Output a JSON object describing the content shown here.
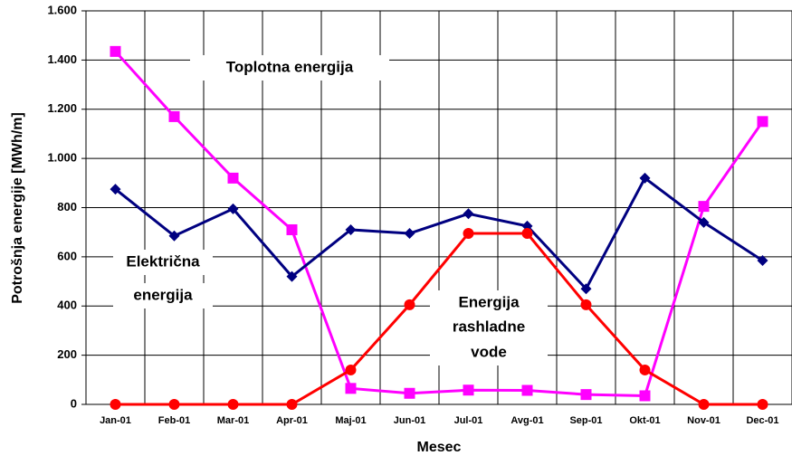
{
  "chart_data": {
    "type": "line",
    "ylabel": "Potrošnja energije [MWh/m]",
    "xlabel": "Mesec",
    "categories": [
      "Jan-01",
      "Feb-01",
      "Mar-01",
      "Apr-01",
      "Maj-01",
      "Jun-01",
      "Jul-01",
      "Avg-01",
      "Sep-01",
      "Okt-01",
      "Nov-01",
      "Dec-01"
    ],
    "series": [
      {
        "name": "Toplotna energija",
        "color": "#ff00ff",
        "marker": "square",
        "values": [
          1435,
          1170,
          920,
          710,
          65,
          45,
          58,
          57,
          40,
          35,
          805,
          1150
        ]
      },
      {
        "name": "Električna energija",
        "color": "#000080",
        "marker": "diamond",
        "values": [
          875,
          685,
          795,
          520,
          710,
          695,
          775,
          725,
          470,
          920,
          740,
          585
        ]
      },
      {
        "name": "Energija rashladne vode",
        "color": "#ff0000",
        "marker": "circle",
        "values": [
          0,
          0,
          0,
          0,
          140,
          405,
          695,
          695,
          405,
          140,
          0,
          0
        ]
      }
    ],
    "annotations": [
      "Toplotna energija",
      "Električna",
      "energija",
      "Energija",
      "rashladne",
      "vode"
    ],
    "ylim": [
      0,
      1600
    ],
    "yticks": [
      0,
      200,
      400,
      600,
      800,
      {
        "value": 1000,
        "label": "1.000"
      },
      {
        "value": 1200,
        "label": "1.200"
      },
      {
        "value": 1400,
        "label": "1.400"
      },
      {
        "value": 1600,
        "label": "1.600"
      }
    ],
    "grid": true
  }
}
